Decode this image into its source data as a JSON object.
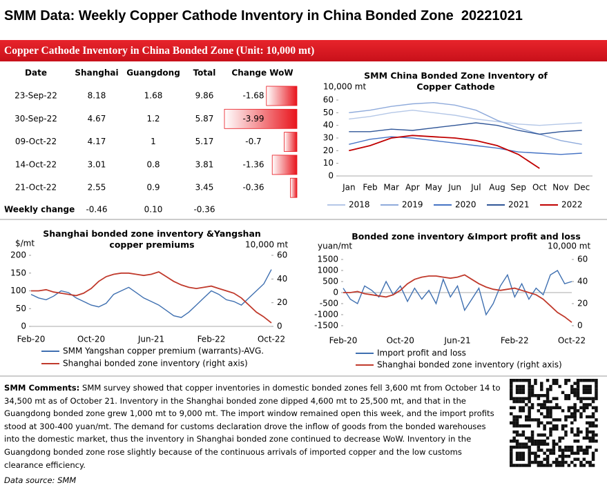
{
  "header": {
    "title": "SMM Data: Weekly Copper Cathode Inventory in China Bonded Zone  20221021",
    "subtitle": "Copper Cathode Inventory in China Bonded Zone (Unit: 10,000 mt)"
  },
  "table": {
    "columns": [
      "Date",
      "Shanghai",
      "Guangdong",
      "Total",
      "Change WoW"
    ],
    "rows": [
      [
        "23-Sep-22",
        "8.18",
        "1.68",
        "9.86"
      ],
      [
        "30-Sep-22",
        "4.67",
        "1.2",
        "5.87"
      ],
      [
        "09-Oct-22",
        "4.17",
        "1",
        "5.17"
      ],
      [
        "14-Oct-22",
        "3.01",
        "0.8",
        "3.81"
      ],
      [
        "21-Oct-22",
        "2.55",
        "0.9",
        "3.45"
      ]
    ],
    "change_wow": [
      -1.68,
      -3.99,
      -0.7,
      -1.36,
      -0.36
    ],
    "bar_color": "#e8141c",
    "footer": [
      "Weekly change",
      "-0.46",
      "0.10",
      "-0.36"
    ]
  },
  "chart_data": [
    {
      "type": "line",
      "title": "SMM China Bonded Zone Inventory of Copper Cathode",
      "ylabel": "10,000 mt",
      "categories": [
        "Jan",
        "Feb",
        "Mar",
        "Apr",
        "May",
        "Jun",
        "Jul",
        "Aug",
        "Sep",
        "Oct",
        "Nov",
        "Dec"
      ],
      "series": [
        {
          "name": "2018",
          "color": "#b4c7e7",
          "values": [
            45,
            47,
            50,
            52,
            50,
            48,
            45,
            43,
            41,
            40,
            41,
            42
          ]
        },
        {
          "name": "2019",
          "color": "#8eaadb",
          "values": [
            50,
            52,
            55,
            57,
            58,
            56,
            52,
            44,
            38,
            33,
            28,
            25
          ]
        },
        {
          "name": "2020",
          "color": "#4472c4",
          "values": [
            25,
            29,
            31,
            30,
            28,
            26,
            24,
            22,
            19,
            18,
            17,
            18
          ]
        },
        {
          "name": "2021",
          "color": "#2f5597",
          "values": [
            35,
            35,
            37,
            36,
            38,
            40,
            42,
            40,
            36,
            33,
            35,
            36
          ]
        },
        {
          "name": "2022",
          "color": "#c00000",
          "values": [
            20,
            24,
            30,
            32,
            31,
            30,
            28,
            24,
            17,
            6,
            null,
            null
          ]
        }
      ],
      "ylim": [
        0,
        60
      ],
      "yticks": [
        0,
        10,
        20,
        30,
        40,
        50,
        60
      ],
      "legend": "bottom"
    },
    {
      "type": "line",
      "title": "Shanghai bonded zone inventory &Yangshan copper premiums",
      "ylabel": "$/mt",
      "y2label": "10,000 mt",
      "categories": [
        "Feb-20",
        null,
        null,
        null,
        null,
        null,
        null,
        null,
        "Oct-20",
        null,
        null,
        null,
        null,
        null,
        null,
        null,
        "Jun-21",
        null,
        null,
        null,
        null,
        null,
        null,
        null,
        "Feb-22",
        null,
        null,
        null,
        null,
        null,
        null,
        null,
        "Oct-22"
      ],
      "series": [
        {
          "name": "SMM Yangshan copper premium (warrants)-AVG.",
          "color": "#3e6fb0",
          "values": [
            90,
            80,
            75,
            85,
            100,
            95,
            80,
            70,
            60,
            55,
            65,
            90,
            100,
            110,
            95,
            80,
            70,
            60,
            45,
            30,
            25,
            40,
            60,
            80,
            100,
            90,
            75,
            70,
            60,
            80,
            100,
            120,
            160
          ]
        },
        {
          "name": "Shanghai bonded zone inventory (right axis)",
          "color": "#c0392b",
          "axis": "y2",
          "values": [
            30,
            30,
            31,
            29,
            28,
            27,
            26,
            28,
            32,
            38,
            42,
            44,
            45,
            45,
            44,
            43,
            44,
            46,
            42,
            38,
            35,
            33,
            32,
            33,
            34,
            32,
            30,
            28,
            24,
            18,
            12,
            8,
            3
          ]
        }
      ],
      "ylim": [
        0,
        200
      ],
      "yticks": [
        0,
        50,
        100,
        150,
        200
      ],
      "y2lim": [
        0,
        60
      ],
      "y2ticks": [
        0,
        20,
        40,
        60
      ],
      "legend": "bottom"
    },
    {
      "type": "line",
      "title": "Bonded zone inventory &Import profit and loss",
      "ylabel": "yuan/mt",
      "y2label": "10,000 mt",
      "categories": [
        "Feb-20",
        null,
        null,
        null,
        null,
        null,
        null,
        null,
        "Oct-20",
        null,
        null,
        null,
        null,
        null,
        null,
        null,
        "Jun-21",
        null,
        null,
        null,
        null,
        null,
        null,
        null,
        "Feb-22",
        null,
        null,
        null,
        null,
        null,
        null,
        null,
        "Oct-22"
      ],
      "series": [
        {
          "name": "Import profit and loss",
          "color": "#3e6fb0",
          "values": [
            200,
            -300,
            -500,
            300,
            100,
            -200,
            500,
            -100,
            300,
            -400,
            200,
            -300,
            100,
            -500,
            600,
            -200,
            300,
            -800,
            -300,
            200,
            -1000,
            -500,
            300,
            800,
            -200,
            400,
            -300,
            200,
            -100,
            800,
            1000,
            400,
            500
          ]
        },
        {
          "name": "Shanghai bonded zone inventory (right axis)",
          "color": "#c0392b",
          "axis": "y2",
          "values": [
            30,
            30,
            31,
            29,
            28,
            27,
            26,
            28,
            32,
            38,
            42,
            44,
            45,
            45,
            44,
            43,
            44,
            46,
            42,
            38,
            35,
            33,
            32,
            33,
            34,
            32,
            30,
            28,
            24,
            18,
            12,
            8,
            3
          ]
        }
      ],
      "ylim": [
        -1500,
        1500
      ],
      "yticks": [
        -1500,
        -1000,
        -500,
        0,
        500,
        1000,
        1500
      ],
      "y2lim": [
        0,
        60
      ],
      "y2ticks": [
        0,
        20,
        40,
        60
      ],
      "legend": "bottom"
    }
  ],
  "comments": {
    "label": "SMM Comments:",
    "text": " SMM survey showed that copper inventories in domestic bonded zones fell 3,600 mt from October 14 to 34,500 mt as of October 21. Inventory in the Shanghai bonded zone dipped 4,600 mt to 25,500 mt, and that in the Guangdong bonded zone grew 1,000 mt to 9,000 mt. The import window remained open this week, and the import profits stood at 300-400 yuan/mt. The demand for customs declaration drove the inflow of goods from the bonded warehouses into the domestic market, thus the inventory in Shanghai bonded zone continued to decrease WoW. Inventory in the Guangdong bonded zone rose slightly because of the continuous arrivals of imported copper and the low customs clearance efficiency."
  },
  "source": "Data source: SMM"
}
